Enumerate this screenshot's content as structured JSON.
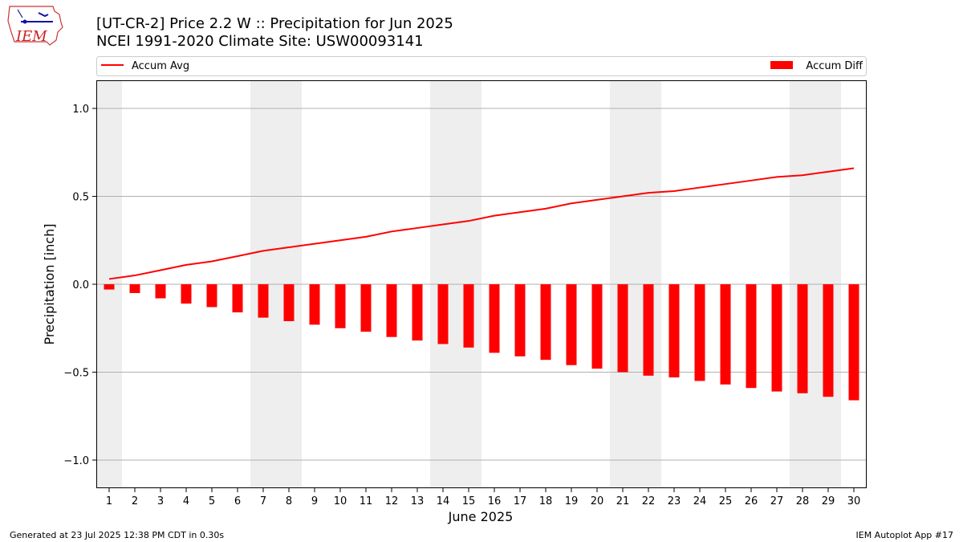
{
  "header": {
    "title_line1": "[UT-CR-2] Price 2.2 W :: Precipitation for Jun 2025",
    "title_line2": "NCEI 1991-2020 Climate Site: USW00093141"
  },
  "logo": {
    "text": "IEM"
  },
  "footer": {
    "left": "Generated at 23 Jul 2025 12:38 PM CDT in 0.30s",
    "right": "IEM Autoplot App #17"
  },
  "colors": {
    "series": "#ff0000",
    "weekend_band": "#eeeeee",
    "grid": "#b0b0b0"
  },
  "chart_data": {
    "type": "bar",
    "xlabel": "June 2025",
    "ylabel": "Precipitation [inch]",
    "ylim": [
      -1.16,
      1.16
    ],
    "yticks": [
      1.0,
      0.5,
      0.0,
      -0.5,
      -1.0
    ],
    "ytick_labels": [
      "1.0",
      "0.5",
      "0.0",
      "−0.5",
      "−1.0"
    ],
    "grid": "horizontal",
    "legend_placement": "top (above plot)",
    "weekend_days": [
      1,
      7,
      8,
      14,
      15,
      21,
      22,
      28,
      29
    ],
    "categories": [
      1,
      2,
      3,
      4,
      5,
      6,
      7,
      8,
      9,
      10,
      11,
      12,
      13,
      14,
      15,
      16,
      17,
      18,
      19,
      20,
      21,
      22,
      23,
      24,
      25,
      26,
      27,
      28,
      29,
      30
    ],
    "series": [
      {
        "name": "Accum Avg",
        "kind": "line",
        "values": [
          0.03,
          0.05,
          0.08,
          0.11,
          0.13,
          0.16,
          0.19,
          0.21,
          0.23,
          0.25,
          0.27,
          0.3,
          0.32,
          0.34,
          0.36,
          0.39,
          0.41,
          0.43,
          0.46,
          0.48,
          0.5,
          0.52,
          0.53,
          0.55,
          0.57,
          0.59,
          0.61,
          0.62,
          0.64,
          0.66
        ]
      },
      {
        "name": "Accum Diff",
        "kind": "bar",
        "values": [
          -0.03,
          -0.05,
          -0.08,
          -0.11,
          -0.13,
          -0.16,
          -0.19,
          -0.21,
          -0.23,
          -0.25,
          -0.27,
          -0.3,
          -0.32,
          -0.34,
          -0.36,
          -0.39,
          -0.41,
          -0.43,
          -0.46,
          -0.48,
          -0.5,
          -0.52,
          -0.53,
          -0.55,
          -0.57,
          -0.59,
          -0.61,
          -0.62,
          -0.64,
          -0.66
        ]
      }
    ]
  }
}
